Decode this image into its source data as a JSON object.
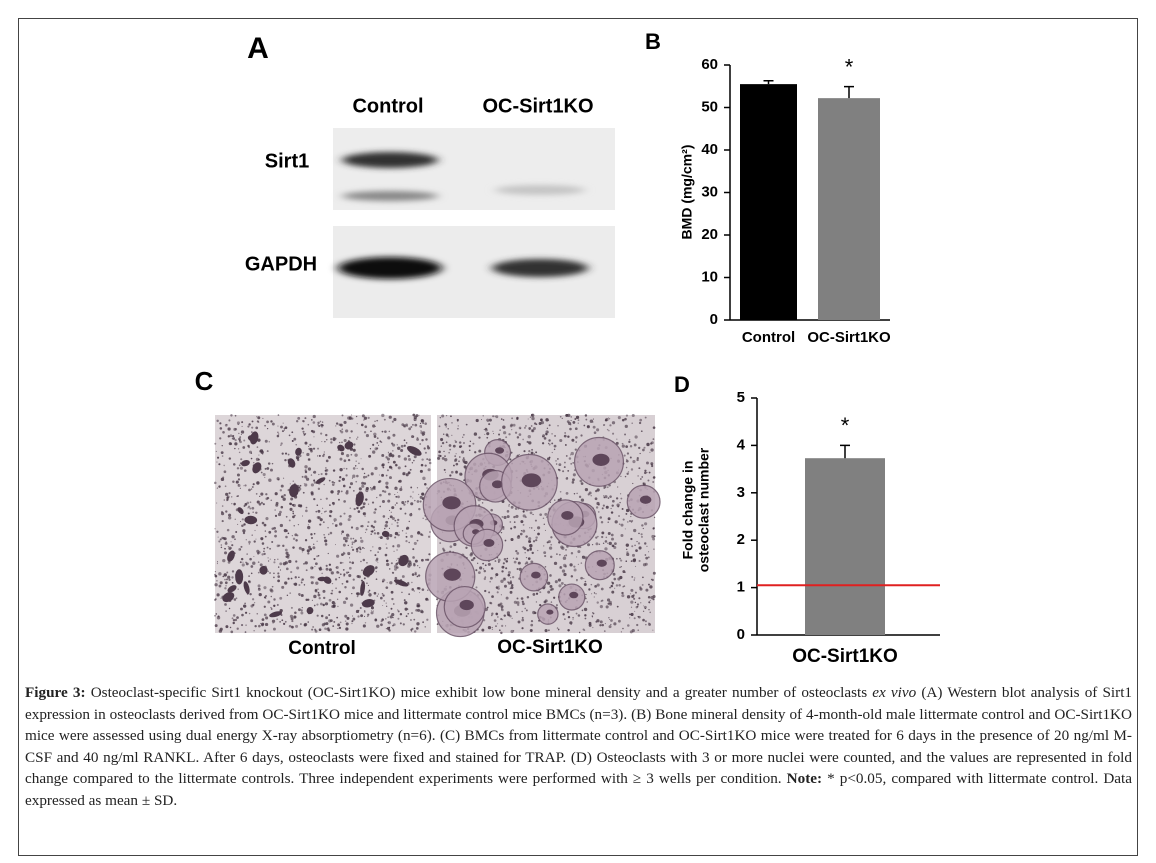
{
  "blot": {
    "panel_label": "A",
    "columns": [
      "Control",
      "OC-Sirt1KO"
    ],
    "rows": [
      "Sirt1",
      "GAPDH"
    ]
  },
  "chart_data": [
    {
      "type": "bar",
      "panel_label": "B",
      "y_label": "BMD (mg/cm²)",
      "categories": [
        "Control",
        "OC-Sirt1KO"
      ],
      "values": [
        55.5,
        52.2
      ],
      "errors": [
        0.8,
        2.7
      ],
      "colors": [
        "#000000",
        "#808080"
      ],
      "annotations": [
        null,
        "*"
      ],
      "ylim": [
        0,
        60
      ],
      "yticks": [
        0,
        10,
        20,
        30,
        40,
        50,
        60
      ]
    },
    {
      "type": "bar",
      "panel_label": "D",
      "y_label": [
        "Fold change in",
        "osteoclast number"
      ],
      "categories": [
        "OC-Sirt1KO"
      ],
      "values": [
        3.73
      ],
      "errors": [
        0.27
      ],
      "colors": [
        "#808080"
      ],
      "annotations": [
        "*"
      ],
      "reference_line": {
        "value": 1.05,
        "color": "#e02020"
      },
      "ylim": [
        0,
        5
      ],
      "yticks": [
        0,
        1,
        2,
        3,
        4,
        5
      ]
    }
  ],
  "micrographs": {
    "panel_label": "C",
    "labels": [
      "Control",
      "OC-Sirt1KO"
    ]
  },
  "caption": {
    "label": "Figure 3:",
    "text1": "Osteoclast-specific Sirt1 knockout (OC-Sirt1KO) mice exhibit low bone mineral density and a greater number of osteoclasts",
    "italic": "ex vivo",
    "text2": "(A) Western blot analysis of Sirt1 expression in osteoclasts derived from OC-Sirt1KO mice and littermate control mice BMCs (n=3). (B) Bone mineral density of 4-month-old male littermate control and OC-Sirt1KO mice were assessed using dual energy X-ray absorptiometry (n=6). (C) BMCs from littermate control and OC-Sirt1KO mice were treated for 6 days in the presence of 20 ng/ml M-CSF and 40 ng/ml RANKL. After 6 days, osteoclasts were fixed and stained for TRAP. (D) Osteoclasts with 3 or more nuclei were counted, and the values are represented in fold change compared to the littermate controls. Three independent experiments were performed with ≥ 3 wells per condition.",
    "note_label": "Note:",
    "text3": "* p<0.05, compared with littermate control. Data expressed as mean ± SD."
  }
}
